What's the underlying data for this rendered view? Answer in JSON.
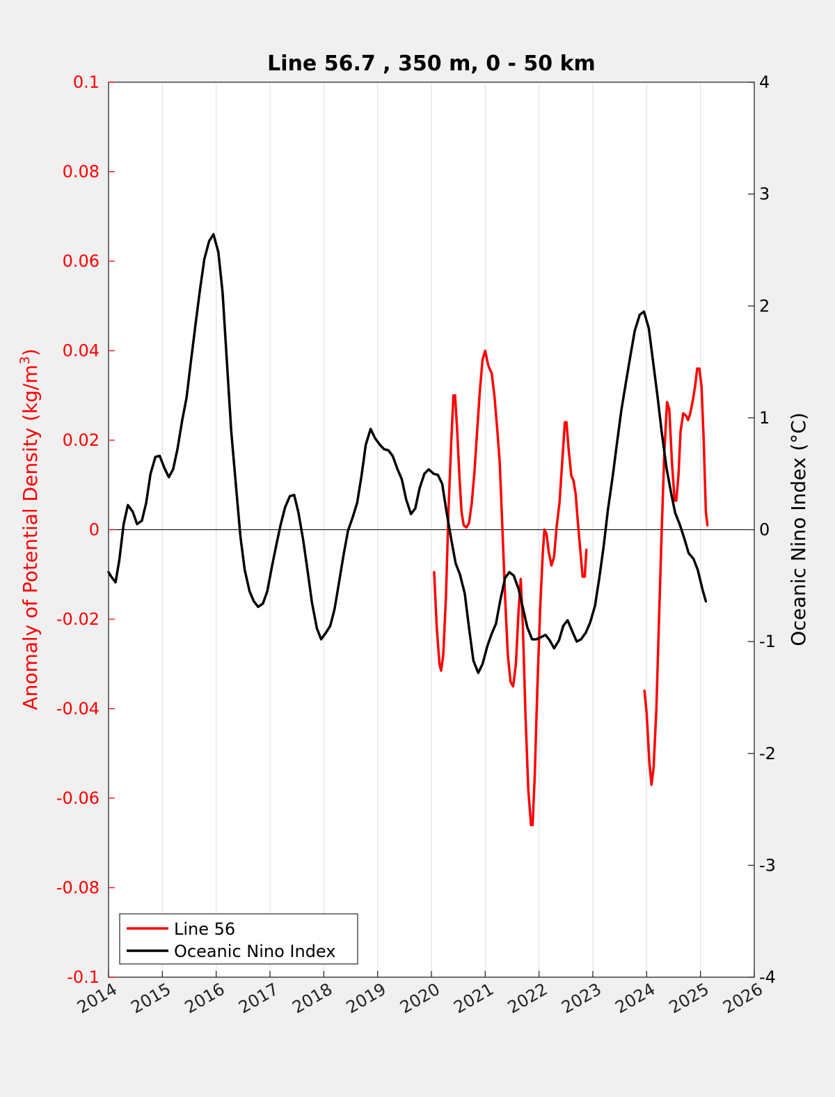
{
  "chart_data": {
    "type": "line",
    "title": "Line 56.7 , 350 m, 0 - 50 km",
    "ylabel_left": "Anomaly of Potential Density (kg/m",
    "ylabel_left_sup": "3",
    "ylabel_left_close": ")",
    "ylabel_right": "Oceanic Nino Index (°C)",
    "xlim": [
      2014,
      2026
    ],
    "ylim_left": [
      -0.1,
      0.1
    ],
    "ylim_right": [
      -4,
      4
    ],
    "x_ticks": [
      "2014",
      "2015",
      "2016",
      "2017",
      "2018",
      "2019",
      "2020",
      "2021",
      "2022",
      "2023",
      "2024",
      "2025",
      "2026"
    ],
    "y_left_ticks": [
      "0.1",
      "0.08",
      "0.06",
      "0.04",
      "0.02",
      "0",
      "-0.02",
      "-0.04",
      "-0.06",
      "-0.08",
      "-0.1"
    ],
    "y_right_ticks": [
      "4",
      "3",
      "2",
      "1",
      "0",
      "-1",
      "-2",
      "-3",
      "-4"
    ],
    "grid": "vertical",
    "legend_position": "bottom-left",
    "colors": {
      "line56": "#ff0000",
      "oni": "#000000"
    },
    "series": [
      {
        "name": "Line 56",
        "axis": "left",
        "segments": [
          [
            [
              2020.05,
              -0.0095
            ],
            [
              2020.1,
              -0.022
            ],
            [
              2020.15,
              -0.03
            ],
            [
              2020.18,
              -0.0315
            ],
            [
              2020.22,
              -0.028
            ],
            [
              2020.27,
              -0.015
            ],
            [
              2020.32,
              0.005
            ],
            [
              2020.37,
              0.02
            ],
            [
              2020.41,
              0.03
            ],
            [
              2020.44,
              0.03
            ],
            [
              2020.48,
              0.022
            ],
            [
              2020.52,
              0.012
            ],
            [
              2020.56,
              0.004
            ],
            [
              2020.6,
              0.001
            ],
            [
              2020.65,
              0.0005
            ],
            [
              2020.7,
              0.0015
            ],
            [
              2020.75,
              0.006
            ],
            [
              2020.8,
              0.013
            ],
            [
              2020.85,
              0.022
            ],
            [
              2020.9,
              0.031
            ],
            [
              2020.95,
              0.038
            ],
            [
              2021.0,
              0.04
            ],
            [
              2021.05,
              0.037
            ],
            [
              2021.08,
              0.036
            ],
            [
              2021.12,
              0.035
            ],
            [
              2021.17,
              0.03
            ],
            [
              2021.22,
              0.023
            ],
            [
              2021.27,
              0.015
            ],
            [
              2021.32,
              0.0
            ],
            [
              2021.37,
              -0.015
            ],
            [
              2021.42,
              -0.028
            ],
            [
              2021.47,
              -0.034
            ],
            [
              2021.52,
              -0.035
            ],
            [
              2021.57,
              -0.03
            ],
            [
              2021.62,
              -0.018
            ],
            [
              2021.66,
              -0.011
            ],
            [
              2021.7,
              -0.022
            ],
            [
              2021.75,
              -0.042
            ],
            [
              2021.8,
              -0.058
            ],
            [
              2021.85,
              -0.066
            ],
            [
              2021.88,
              -0.066
            ],
            [
              2021.92,
              -0.055
            ],
            [
              2021.97,
              -0.035
            ],
            [
              2022.02,
              -0.018
            ],
            [
              2022.07,
              -0.005
            ],
            [
              2022.1,
              0.0
            ],
            [
              2022.14,
              -0.001
            ],
            [
              2022.18,
              -0.005
            ],
            [
              2022.23,
              -0.008
            ],
            [
              2022.28,
              -0.006
            ],
            [
              2022.33,
              0.001
            ],
            [
              2022.38,
              0.006
            ],
            [
              2022.43,
              0.015
            ],
            [
              2022.48,
              0.024
            ],
            [
              2022.51,
              0.024
            ],
            [
              2022.55,
              0.018
            ],
            [
              2022.6,
              0.012
            ],
            [
              2022.64,
              0.011
            ],
            [
              2022.68,
              0.008
            ],
            [
              2022.72,
              0.002
            ],
            [
              2022.77,
              -0.005
            ],
            [
              2022.81,
              -0.0105
            ],
            [
              2022.85,
              -0.0105
            ],
            [
              2022.88,
              -0.0045
            ]
          ],
          [
            [
              2023.96,
              -0.036
            ],
            [
              2024.0,
              -0.041
            ],
            [
              2024.05,
              -0.052
            ],
            [
              2024.09,
              -0.057
            ],
            [
              2024.13,
              -0.053
            ],
            [
              2024.18,
              -0.04
            ],
            [
              2024.23,
              -0.02
            ],
            [
              2024.28,
              0.0
            ],
            [
              2024.33,
              0.018
            ],
            [
              2024.38,
              0.0285
            ],
            [
              2024.42,
              0.027
            ],
            [
              2024.47,
              0.015
            ],
            [
              2024.52,
              0.0065
            ],
            [
              2024.55,
              0.0065
            ],
            [
              2024.59,
              0.012
            ],
            [
              2024.63,
              0.022
            ],
            [
              2024.68,
              0.026
            ],
            [
              2024.73,
              0.0255
            ],
            [
              2024.77,
              0.0245
            ],
            [
              2024.81,
              0.026
            ],
            [
              2024.86,
              0.029
            ],
            [
              2024.9,
              0.032
            ],
            [
              2024.94,
              0.036
            ],
            [
              2024.98,
              0.036
            ],
            [
              2025.02,
              0.032
            ],
            [
              2025.06,
              0.02
            ],
            [
              2025.1,
              0.004
            ],
            [
              2025.13,
              0.001
            ]
          ]
        ]
      },
      {
        "name": "Oceanic Nino Index",
        "axis": "right",
        "segments": [
          [
            [
              2014.0,
              -0.38
            ],
            [
              2014.05,
              -0.42
            ],
            [
              2014.13,
              -0.47
            ],
            [
              2014.2,
              -0.27
            ],
            [
              2014.28,
              0.05
            ],
            [
              2014.36,
              0.22
            ],
            [
              2014.45,
              0.16
            ],
            [
              2014.53,
              0.05
            ],
            [
              2014.62,
              0.08
            ],
            [
              2014.7,
              0.24
            ],
            [
              2014.78,
              0.5
            ],
            [
              2014.87,
              0.65
            ],
            [
              2014.95,
              0.66
            ],
            [
              2015.04,
              0.55
            ],
            [
              2015.12,
              0.47
            ],
            [
              2015.2,
              0.54
            ],
            [
              2015.28,
              0.72
            ],
            [
              2015.37,
              0.98
            ],
            [
              2015.45,
              1.18
            ],
            [
              2015.53,
              1.5
            ],
            [
              2015.62,
              1.85
            ],
            [
              2015.7,
              2.15
            ],
            [
              2015.78,
              2.42
            ],
            [
              2015.87,
              2.58
            ],
            [
              2015.95,
              2.64
            ],
            [
              2016.04,
              2.48
            ],
            [
              2016.12,
              2.12
            ],
            [
              2016.2,
              1.5
            ],
            [
              2016.28,
              0.88
            ],
            [
              2016.37,
              0.38
            ],
            [
              2016.45,
              -0.06
            ],
            [
              2016.53,
              -0.36
            ],
            [
              2016.62,
              -0.55
            ],
            [
              2016.7,
              -0.64
            ],
            [
              2016.78,
              -0.69
            ],
            [
              2016.87,
              -0.66
            ],
            [
              2016.95,
              -0.55
            ],
            [
              2017.04,
              -0.32
            ],
            [
              2017.12,
              -0.13
            ],
            [
              2017.2,
              0.05
            ],
            [
              2017.28,
              0.2
            ],
            [
              2017.37,
              0.3
            ],
            [
              2017.45,
              0.31
            ],
            [
              2017.53,
              0.15
            ],
            [
              2017.62,
              -0.1
            ],
            [
              2017.7,
              -0.37
            ],
            [
              2017.78,
              -0.65
            ],
            [
              2017.87,
              -0.88
            ],
            [
              2017.95,
              -0.98
            ],
            [
              2018.04,
              -0.92
            ],
            [
              2018.12,
              -0.86
            ],
            [
              2018.2,
              -0.71
            ],
            [
              2018.28,
              -0.48
            ],
            [
              2018.37,
              -0.22
            ],
            [
              2018.45,
              -0.01
            ],
            [
              2018.53,
              0.1
            ],
            [
              2018.62,
              0.24
            ],
            [
              2018.7,
              0.48
            ],
            [
              2018.78,
              0.76
            ],
            [
              2018.87,
              0.9
            ],
            [
              2018.95,
              0.82
            ],
            [
              2019.04,
              0.76
            ],
            [
              2019.12,
              0.72
            ],
            [
              2019.2,
              0.71
            ],
            [
              2019.28,
              0.66
            ],
            [
              2019.37,
              0.54
            ],
            [
              2019.45,
              0.45
            ],
            [
              2019.53,
              0.27
            ],
            [
              2019.62,
              0.14
            ],
            [
              2019.7,
              0.19
            ],
            [
              2019.78,
              0.37
            ],
            [
              2019.87,
              0.5
            ],
            [
              2019.95,
              0.54
            ],
            [
              2020.04,
              0.5
            ],
            [
              2020.12,
              0.49
            ],
            [
              2020.2,
              0.41
            ],
            [
              2020.28,
              0.16
            ],
            [
              2020.37,
              -0.09
            ],
            [
              2020.45,
              -0.3
            ],
            [
              2020.53,
              -0.4
            ],
            [
              2020.62,
              -0.57
            ],
            [
              2020.7,
              -0.88
            ],
            [
              2020.78,
              -1.17
            ],
            [
              2020.87,
              -1.28
            ],
            [
              2020.95,
              -1.2
            ],
            [
              2021.04,
              -1.04
            ],
            [
              2021.12,
              -0.93
            ],
            [
              2021.2,
              -0.84
            ],
            [
              2021.28,
              -0.63
            ],
            [
              2021.37,
              -0.43
            ],
            [
              2021.45,
              -0.38
            ],
            [
              2021.53,
              -0.41
            ],
            [
              2021.62,
              -0.53
            ],
            [
              2021.7,
              -0.7
            ],
            [
              2021.78,
              -0.87
            ],
            [
              2021.87,
              -0.98
            ],
            [
              2021.95,
              -0.98
            ],
            [
              2022.04,
              -0.96
            ],
            [
              2022.12,
              -0.94
            ],
            [
              2022.2,
              -0.99
            ],
            [
              2022.28,
              -1.06
            ],
            [
              2022.37,
              -0.99
            ],
            [
              2022.45,
              -0.86
            ],
            [
              2022.53,
              -0.81
            ],
            [
              2022.62,
              -0.91
            ],
            [
              2022.7,
              -1.0
            ],
            [
              2022.78,
              -0.98
            ],
            [
              2022.87,
              -0.92
            ],
            [
              2022.95,
              -0.83
            ],
            [
              2023.04,
              -0.68
            ],
            [
              2023.12,
              -0.43
            ],
            [
              2023.2,
              -0.15
            ],
            [
              2023.28,
              0.18
            ],
            [
              2023.37,
              0.48
            ],
            [
              2023.45,
              0.78
            ],
            [
              2023.53,
              1.07
            ],
            [
              2023.62,
              1.33
            ],
            [
              2023.7,
              1.56
            ],
            [
              2023.78,
              1.78
            ],
            [
              2023.87,
              1.92
            ],
            [
              2023.95,
              1.95
            ],
            [
              2024.04,
              1.8
            ],
            [
              2024.12,
              1.5
            ],
            [
              2024.2,
              1.2
            ],
            [
              2024.28,
              0.87
            ],
            [
              2024.37,
              0.55
            ],
            [
              2024.45,
              0.34
            ],
            [
              2024.53,
              0.15
            ],
            [
              2024.62,
              0.04
            ],
            [
              2024.7,
              -0.08
            ],
            [
              2024.78,
              -0.21
            ],
            [
              2024.87,
              -0.26
            ],
            [
              2024.95,
              -0.36
            ],
            [
              2025.04,
              -0.54
            ],
            [
              2025.1,
              -0.64
            ]
          ]
        ]
      }
    ]
  }
}
